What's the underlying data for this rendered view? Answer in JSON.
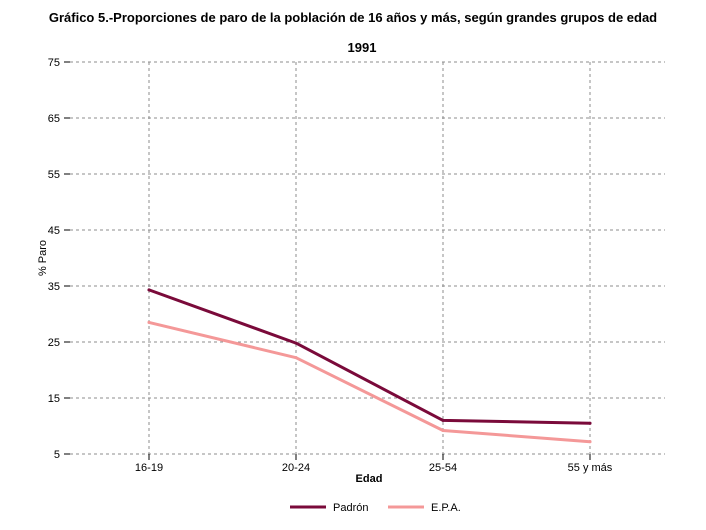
{
  "page": {
    "title": "Gráfico 5.-Proporciones de paro de la población de 16 años y más, según grandes grupos de edad"
  },
  "chart_data": {
    "type": "line",
    "title": "1991",
    "xlabel": "Edad",
    "ylabel": "% Paro",
    "categories": [
      "16-19",
      "20-24",
      "25-54",
      "55 y más"
    ],
    "yticks": [
      5,
      15,
      25,
      35,
      45,
      55,
      65,
      75
    ],
    "ylim": [
      5,
      75
    ],
    "grid": true,
    "legend_position": "bottom-center",
    "series": [
      {
        "name": "Padrón",
        "values": [
          34.3,
          24.8,
          11.0,
          10.5
        ],
        "color": "#7a0a3a"
      },
      {
        "name": "E.P.A.",
        "values": [
          28.5,
          22.2,
          9.2,
          7.2
        ],
        "color": "#f49898"
      }
    ]
  }
}
